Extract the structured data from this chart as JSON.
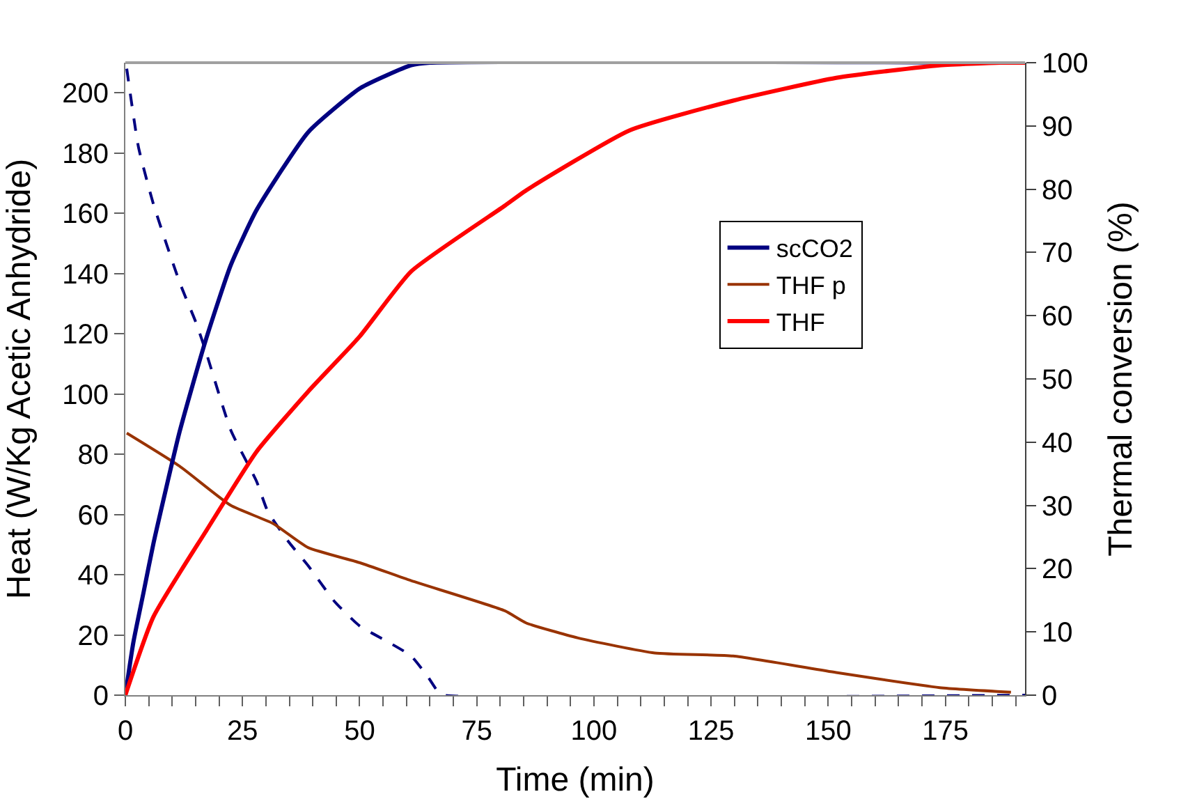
{
  "chart_data": {
    "type": "line",
    "xlabel": "Time (min)",
    "ylabel": "Heat (W/Kg Acetic Anhydride)",
    "y2label": "Thermal conversion (%)",
    "xlim": [
      0,
      192
    ],
    "xticks": [
      0,
      {
        "value": 5,
        "label": null
      },
      {
        "value": 10,
        "label": null
      },
      {
        "value": 15,
        "label": null
      },
      {
        "value": 20,
        "label": null
      },
      25,
      {
        "value": 30,
        "label": null
      },
      {
        "value": 35,
        "label": null
      },
      {
        "value": 40,
        "label": null
      },
      {
        "value": 45,
        "label": null
      },
      50,
      {
        "value": 55,
        "label": null
      },
      {
        "value": 60,
        "label": null
      },
      {
        "value": 65,
        "label": null
      },
      {
        "value": 70,
        "label": null
      },
      75,
      {
        "value": 80,
        "label": null
      },
      {
        "value": 85,
        "label": null
      },
      {
        "value": 90,
        "label": null
      },
      {
        "value": 95,
        "label": null
      },
      100,
      {
        "value": 105,
        "label": null
      },
      {
        "value": 110,
        "label": null
      },
      {
        "value": 115,
        "label": null
      },
      {
        "value": 120,
        "label": null
      },
      125,
      {
        "value": 130,
        "label": null
      },
      {
        "value": 135,
        "label": null
      },
      {
        "value": 140,
        "label": null
      },
      {
        "value": 145,
        "label": null
      },
      150,
      {
        "value": 155,
        "label": null
      },
      {
        "value": 160,
        "label": null
      },
      {
        "value": 165,
        "label": null
      },
      {
        "value": 170,
        "label": null
      },
      175,
      {
        "value": 180,
        "label": null
      },
      {
        "value": 185,
        "label": null
      },
      {
        "value": 190,
        "label": null
      }
    ],
    "ylim": [
      0,
      210
    ],
    "yticks": [
      0,
      20,
      40,
      60,
      80,
      100,
      120,
      140,
      160,
      180,
      200
    ],
    "y2lim": [
      0,
      100
    ],
    "y2ticks": [
      0,
      10,
      20,
      30,
      40,
      50,
      60,
      70,
      80,
      90,
      100
    ],
    "legend": "right",
    "marker": "none",
    "series": [
      {
        "name": "scCO2",
        "color": "#000080",
        "axis": "y2",
        "line_style": "solid",
        "x": [
          0,
          1.7,
          3.9,
          6,
          11.6,
          17.1,
          22.5,
          28,
          39,
          50.2,
          61,
          65,
          192
        ],
        "values": [
          0,
          8.3,
          16.3,
          24,
          41.7,
          56,
          68,
          76.7,
          89,
          96,
          99.6,
          100,
          100
        ]
      },
      {
        "color": "#000080",
        "line_style": "dashed",
        "x": [
          0.3,
          2.8,
          6,
          11.6,
          15,
          17,
          22.5,
          28,
          30.4,
          34.8,
          39,
          44.7,
          50,
          55.7,
          61,
          64.6,
          66.8,
          68,
          192
        ],
        "values": [
          208,
          182,
          163,
          137,
          124,
          115,
          88,
          71,
          61,
          51,
          43,
          31,
          23,
          18,
          13,
          6,
          1,
          0,
          0
        ]
      },
      {
        "name": "THF p",
        "color": "#993300",
        "line_style": "solid",
        "x": [
          0.3,
          11.6,
          22.5,
          31.5,
          39,
          50,
          61,
          81,
          85.5,
          96.6,
          113,
          129.7,
          151.7,
          173.8,
          189
        ],
        "values": [
          87,
          76,
          63,
          57,
          49,
          44,
          38,
          28,
          24,
          19,
          14,
          13,
          7.5,
          2.5,
          1
        ]
      },
      {
        "name": "THF",
        "color": "#ff0000",
        "axis": "y2",
        "line_style": "solid",
        "x": [
          0,
          6,
          17.1,
          28,
          39,
          50,
          61,
          81,
          85.5,
          107.6,
          129.7,
          151.7,
          173.8,
          186.7,
          192
        ],
        "values": [
          0,
          12.4,
          25.8,
          38.5,
          48,
          56.7,
          67,
          77.4,
          79.8,
          89.3,
          94,
          97.6,
          99.6,
          100,
          100
        ]
      }
    ]
  }
}
